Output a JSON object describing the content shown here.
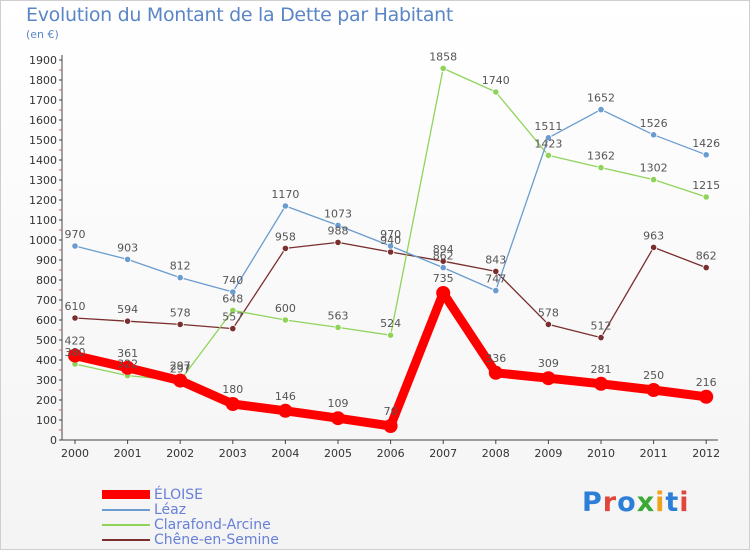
{
  "header": {
    "title": "Evolution du Montant de la Dette par Habitant",
    "subtitle": "(en €)"
  },
  "logo": {
    "text": "Proxiti",
    "letter_colors": [
      "#2b7fd8",
      "#e2463a",
      "#2b7fd8",
      "#3aaa35",
      "#f0a21c",
      "#2b7fd8",
      "#e2463a"
    ]
  },
  "chart_data": {
    "type": "line",
    "title": "Evolution du Montant de la Dette par Habitant",
    "subtitle": "(en €)",
    "x": [
      "2000",
      "2001",
      "2002",
      "2003",
      "2004",
      "2005",
      "2006",
      "2007",
      "2008",
      "2009",
      "2010",
      "2011",
      "2012"
    ],
    "ylim": [
      0,
      1900
    ],
    "yticks": [
      0,
      100,
      200,
      300,
      400,
      500,
      600,
      700,
      800,
      900,
      1000,
      1100,
      1200,
      1300,
      1400,
      1500,
      1600,
      1700,
      1800,
      1900
    ],
    "grid": false,
    "legend": "bottom-left",
    "series": [
      {
        "name": "Chêne-en-Semine",
        "color": "#7a2e2e",
        "values": [
          610,
          594,
          578,
          557,
          958,
          988,
          940,
          894,
          843,
          578,
          512,
          963,
          862
        ]
      },
      {
        "name": "Clarafond-Arcine",
        "color": "#8fd45a",
        "values": [
          380,
          322,
          297,
          648,
          600,
          563,
          524,
          1858,
          1740,
          1423,
          1362,
          1302,
          1215
        ]
      },
      {
        "name": "Léaz",
        "color": "#6a9cd0",
        "values": [
          970,
          903,
          812,
          740,
          1170,
          1073,
          970,
          862,
          747,
          1511,
          1652,
          1526,
          1426
        ]
      },
      {
        "name": "ÉLOISE",
        "color": "#ff0000",
        "values": [
          422,
          361,
          297,
          180,
          146,
          109,
          70,
          735,
          336,
          309,
          281,
          250,
          216
        ]
      }
    ],
    "legend_order": [
      "ÉLOISE",
      "Léaz",
      "Clarafond-Arcine",
      "Chêne-en-Semine"
    ]
  }
}
